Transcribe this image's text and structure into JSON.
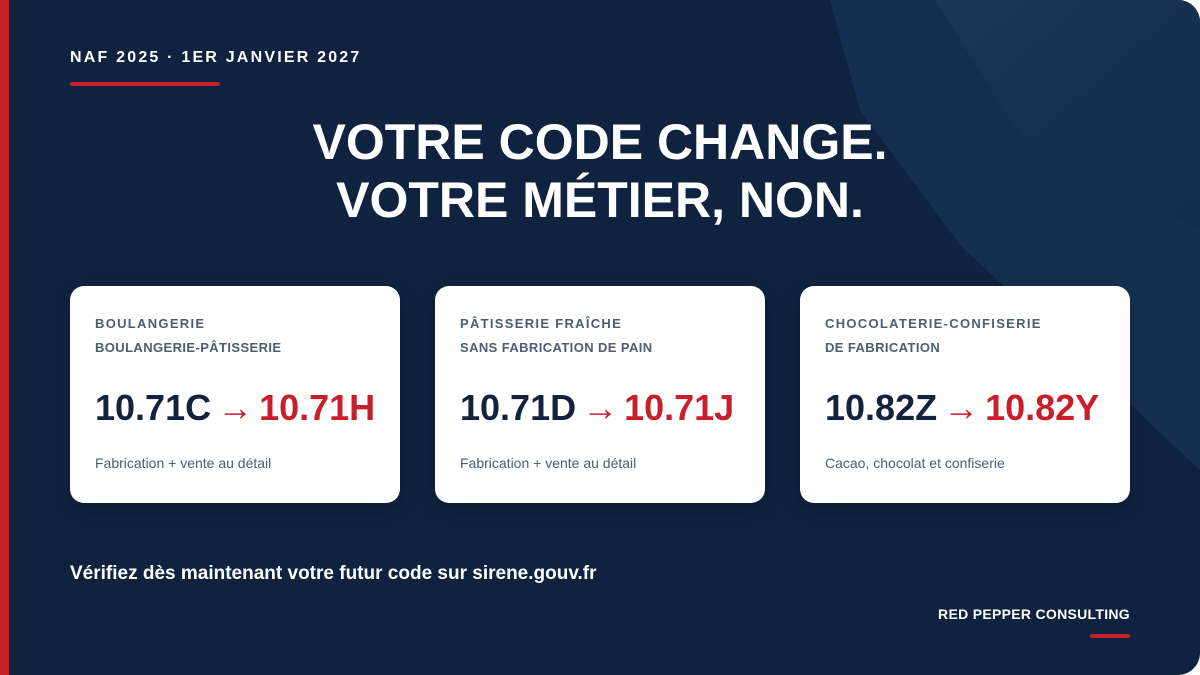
{
  "eyebrow": "NAF 2025 · 1ER JANVIER 2027",
  "headline": {
    "line1": "VOTRE CODE CHANGE.",
    "line2": "VOTRE MÉTIER, NON."
  },
  "cards": [
    {
      "title1": "BOULANGERIE",
      "title2": "BOULANGERIE-PÂTISSERIE",
      "old_code": "10.71C",
      "arrow": "→",
      "new_code": "10.71H",
      "description": "Fabrication + vente au détail"
    },
    {
      "title1": "PÂTISSERIE FRAÎCHE",
      "title2": "SANS FABRICATION DE PAIN",
      "old_code": "10.71D",
      "arrow": "→",
      "new_code": "10.71J",
      "description": "Fabrication + vente au détail"
    },
    {
      "title1": "CHOCOLATERIE-CONFISERIE",
      "title2": "DE FABRICATION",
      "old_code": "10.82Z",
      "arrow": "→",
      "new_code": "10.82Y",
      "description": "Cacao, chocolat et confiserie"
    }
  ],
  "cta": "Vérifiez dès maintenant votre futur code sur sirene.gouv.fr",
  "brand": "RED PEPPER CONSULTING",
  "colors": {
    "background": "#0f2341",
    "accent": "#c8202b",
    "card": "#ffffff",
    "code_dark": "#14233d"
  }
}
